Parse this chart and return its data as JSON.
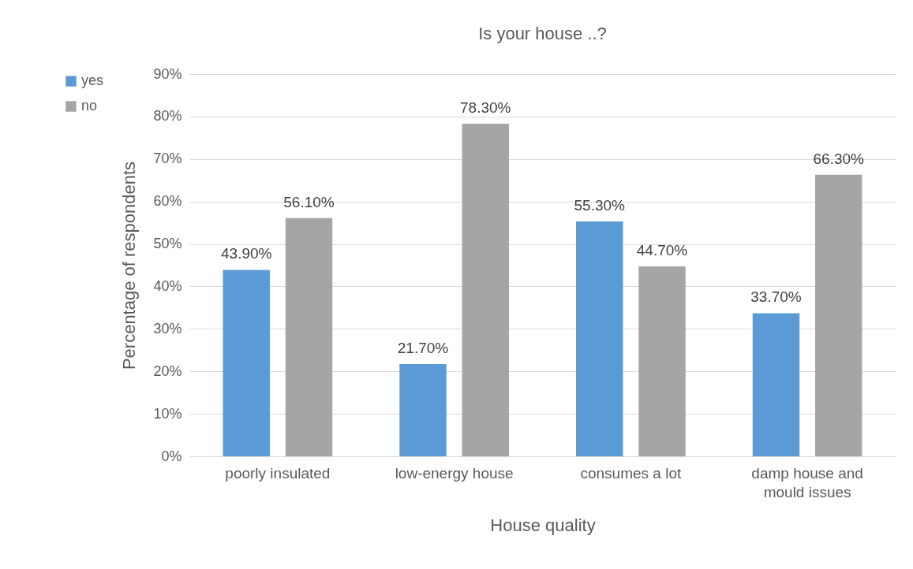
{
  "chart_data": {
    "type": "bar",
    "title": "Is your house ..?",
    "xlabel": "House quality",
    "ylabel": "Percentage of respondents",
    "categories": [
      "poorly insulated",
      "low-energy house",
      "consumes a lot",
      "damp house and mould issues"
    ],
    "series": [
      {
        "name": "yes",
        "color": "#5b9bd5",
        "values": [
          43.9,
          21.7,
          55.3,
          33.7
        ],
        "value_labels": [
          "43.90%",
          "21.70%",
          "55.30%",
          "33.70%"
        ]
      },
      {
        "name": "no",
        "color": "#a5a5a5",
        "values": [
          56.1,
          78.3,
          44.7,
          66.3
        ],
        "value_labels": [
          "56.10%",
          "78.30%",
          "44.70%",
          "66.30%"
        ]
      }
    ],
    "ylim": [
      0,
      90
    ],
    "yticks": [
      {
        "value": 0,
        "label": "0%"
      },
      {
        "value": 10,
        "label": "10%"
      },
      {
        "value": 20,
        "label": "20%"
      },
      {
        "value": 30,
        "label": "30%"
      },
      {
        "value": 40,
        "label": "40%"
      },
      {
        "value": 50,
        "label": "50%"
      },
      {
        "value": 60,
        "label": "60%"
      },
      {
        "value": 70,
        "label": "70%"
      },
      {
        "value": 80,
        "label": "80%"
      },
      {
        "value": 90,
        "label": "90%"
      }
    ],
    "grid": "y",
    "legend": "left"
  }
}
